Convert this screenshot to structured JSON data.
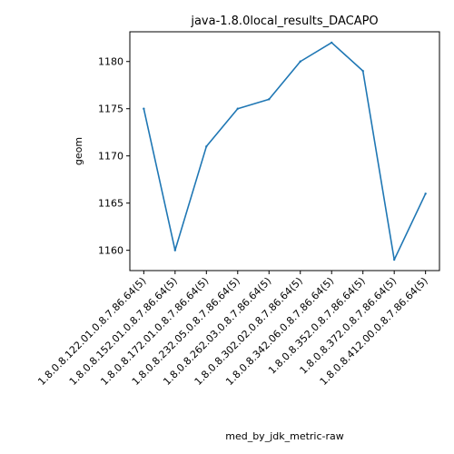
{
  "chart_data": {
    "type": "line",
    "title": "java-1.8.0local_results_DACAPO",
    "xlabel": "med_by_jdk_metric-raw",
    "ylabel": "geom",
    "categories": [
      "1.8.0.8.122.01.0.8.7.86.64(5)",
      "1.8.0.8.152.01.0.8.7.86.64(5)",
      "1.8.0.8.172.01.0.8.7.86.64(5)",
      "1.8.0.8.232.05.0.8.7.86.64(5)",
      "1.8.0.8.262.03.0.8.7.86.64(5)",
      "1.8.0.8.302.02.0.8.7.86.64(5)",
      "1.8.0.8.342.06.0.8.7.86.64(5)",
      "1.8.0.8.352.0.8.7.86.64(5)",
      "1.8.0.8.372.0.8.7.86.64(5)",
      "1.8.0.8.412.00.0.8.7.86.64(5)"
    ],
    "series": [
      {
        "color": "#1f77b4",
        "values": [
          1175,
          1160,
          1171,
          1175,
          1176,
          1180,
          1182,
          1179,
          1159,
          1166
        ]
      }
    ],
    "yticks": [
      1160,
      1165,
      1170,
      1175,
      1180
    ],
    "ylim": [
      1157.85,
      1183.15
    ],
    "grid": false,
    "legend": "none"
  }
}
